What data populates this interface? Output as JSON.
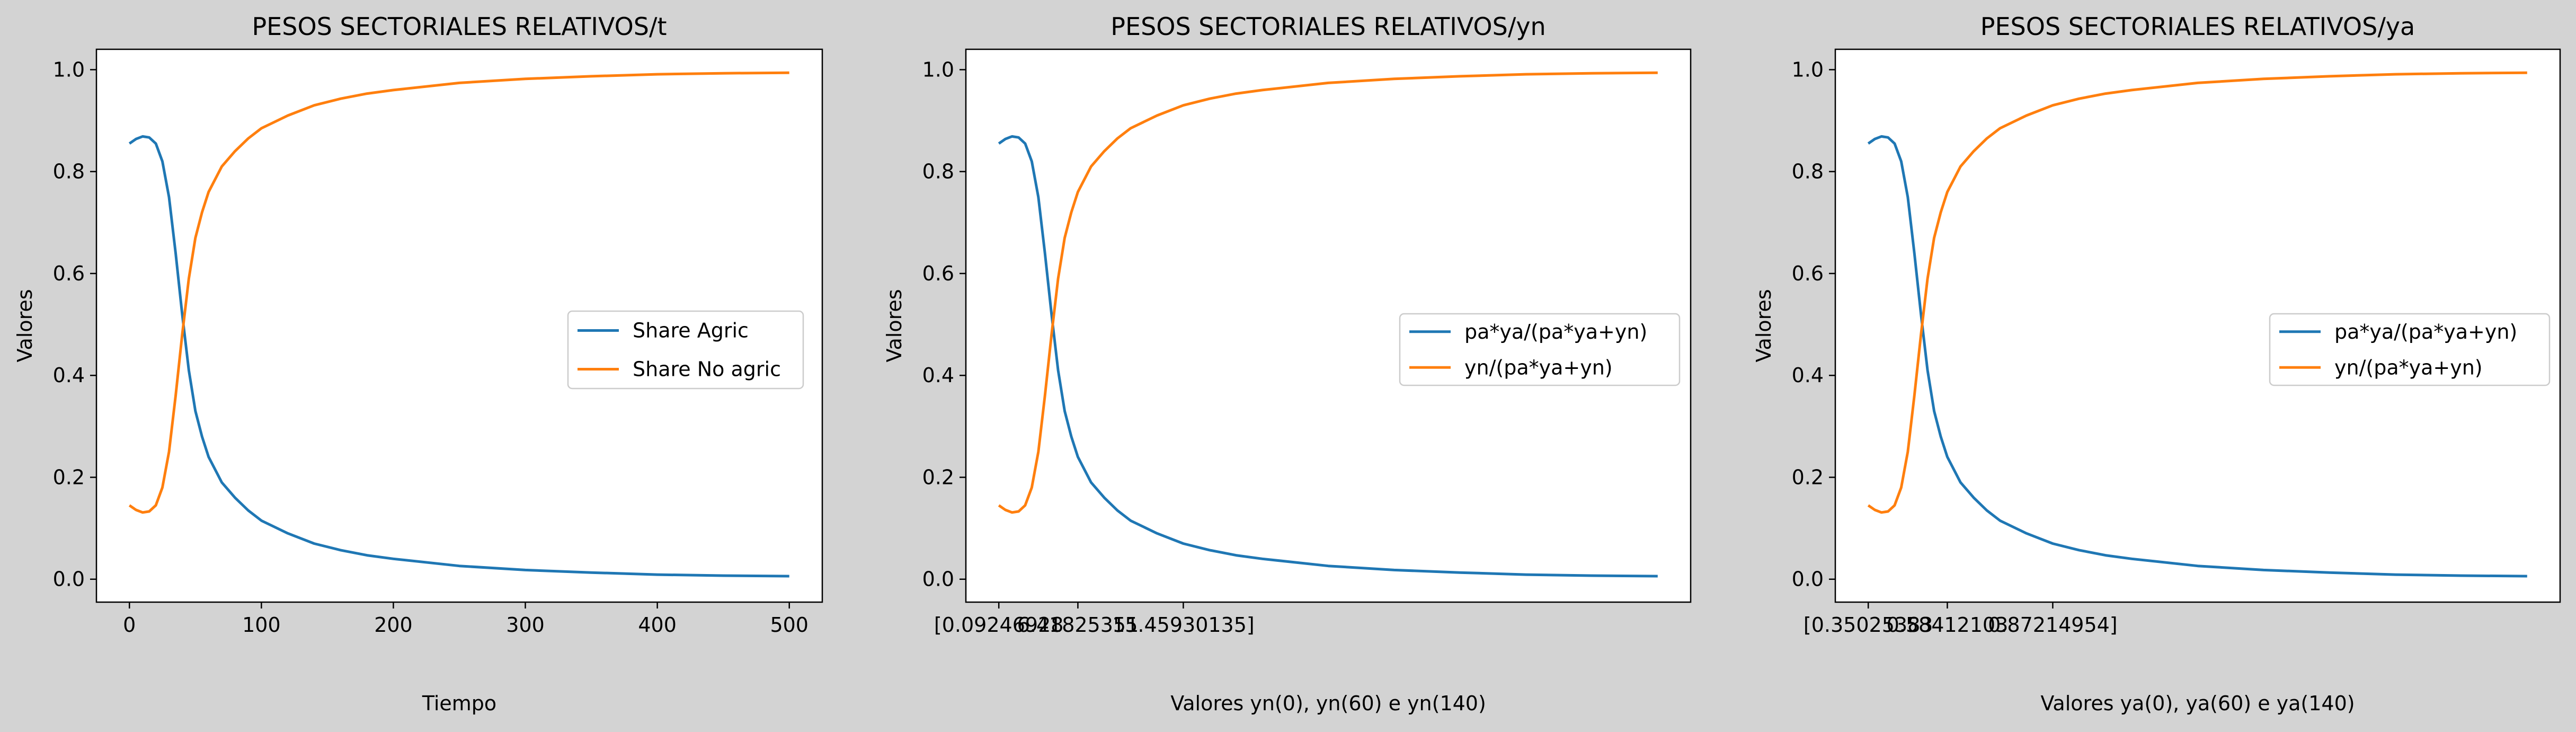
{
  "figure": {
    "background": "#d3d3d3",
    "series_colors": [
      "#1f77b4",
      "#ff7f0e"
    ]
  },
  "chart_data": [
    {
      "type": "line",
      "title": "PESOS SECTORIALES RELATIVOS/t",
      "xlabel": "Tiempo",
      "ylabel": "Valores",
      "xlim": [
        -25,
        525
      ],
      "ylim": [
        -0.045,
        1.04
      ],
      "xticks": [
        0,
        100,
        200,
        300,
        400,
        500
      ],
      "xtick_labels": [
        "0",
        "100",
        "200",
        "300",
        "400",
        "500"
      ],
      "yticks": [
        0.0,
        0.2,
        0.4,
        0.6,
        0.8,
        1.0
      ],
      "ytick_labels": [
        "0.0",
        "0.2",
        "0.4",
        "0.6",
        "0.8",
        "1.0"
      ],
      "grid": false,
      "legend_position": "center-right",
      "x": [
        0,
        5,
        10,
        15,
        20,
        25,
        30,
        35,
        40,
        45,
        50,
        55,
        60,
        70,
        80,
        90,
        100,
        120,
        140,
        160,
        180,
        200,
        250,
        300,
        350,
        400,
        450,
        500
      ],
      "series": [
        {
          "name": "Share Agric",
          "color": "#1f77b4",
          "values": [
            0.855,
            0.864,
            0.869,
            0.867,
            0.855,
            0.82,
            0.75,
            0.64,
            0.52,
            0.41,
            0.33,
            0.28,
            0.24,
            0.19,
            0.16,
            0.135,
            0.115,
            0.09,
            0.07,
            0.057,
            0.047,
            0.04,
            0.026,
            0.018,
            0.013,
            0.009,
            0.007,
            0.006
          ]
        },
        {
          "name": "Share No agric",
          "color": "#ff7f0e",
          "values": [
            0.145,
            0.136,
            0.131,
            0.133,
            0.145,
            0.18,
            0.25,
            0.36,
            0.48,
            0.59,
            0.67,
            0.72,
            0.76,
            0.81,
            0.84,
            0.865,
            0.885,
            0.91,
            0.93,
            0.943,
            0.953,
            0.96,
            0.974,
            0.982,
            0.987,
            0.991,
            0.993,
            0.994
          ]
        }
      ]
    },
    {
      "type": "line",
      "title": "PESOS SECTORIALES RELATIVOS/yn",
      "xlabel": "Valores yn(0), yn(60) e yn(140)",
      "ylabel": "Valores",
      "xlim": [
        -25,
        525
      ],
      "ylim": [
        -0.045,
        1.04
      ],
      "xticks": [
        0,
        60,
        140
      ],
      "xtick_labels": [
        "[0.09246928",
        "6.41825351",
        "15.45930135]"
      ],
      "yticks": [
        0.0,
        0.2,
        0.4,
        0.6,
        0.8,
        1.0
      ],
      "ytick_labels": [
        "0.0",
        "0.2",
        "0.4",
        "0.6",
        "0.8",
        "1.0"
      ],
      "grid": false,
      "legend_position": "center-right",
      "x": [
        0,
        5,
        10,
        15,
        20,
        25,
        30,
        35,
        40,
        45,
        50,
        55,
        60,
        70,
        80,
        90,
        100,
        120,
        140,
        160,
        180,
        200,
        250,
        300,
        350,
        400,
        450,
        500
      ],
      "series": [
        {
          "name": "pa*ya/(pa*ya+yn)",
          "color": "#1f77b4",
          "values": [
            0.855,
            0.864,
            0.869,
            0.867,
            0.855,
            0.82,
            0.75,
            0.64,
            0.52,
            0.41,
            0.33,
            0.28,
            0.24,
            0.19,
            0.16,
            0.135,
            0.115,
            0.09,
            0.07,
            0.057,
            0.047,
            0.04,
            0.026,
            0.018,
            0.013,
            0.009,
            0.007,
            0.006
          ]
        },
        {
          "name": "yn/(pa*ya+yn)",
          "color": "#ff7f0e",
          "values": [
            0.145,
            0.136,
            0.131,
            0.133,
            0.145,
            0.18,
            0.25,
            0.36,
            0.48,
            0.59,
            0.67,
            0.72,
            0.76,
            0.81,
            0.84,
            0.865,
            0.885,
            0.91,
            0.93,
            0.943,
            0.953,
            0.96,
            0.974,
            0.982,
            0.987,
            0.991,
            0.993,
            0.994
          ]
        }
      ]
    },
    {
      "type": "line",
      "title": "PESOS SECTORIALES RELATIVOS/ya",
      "xlabel": "Valores ya(0), ya(60) e ya(140)",
      "ylabel": "Valores",
      "xlim": [
        -25,
        525
      ],
      "ylim": [
        -0.045,
        1.04
      ],
      "xticks": [
        0,
        60,
        140
      ],
      "xtick_labels": [
        "[0.35025383",
        "0.58412103",
        "0.87214954]"
      ],
      "yticks": [
        0.0,
        0.2,
        0.4,
        0.6,
        0.8,
        1.0
      ],
      "ytick_labels": [
        "0.0",
        "0.2",
        "0.4",
        "0.6",
        "0.8",
        "1.0"
      ],
      "grid": false,
      "legend_position": "center-right",
      "x": [
        0,
        5,
        10,
        15,
        20,
        25,
        30,
        35,
        40,
        45,
        50,
        55,
        60,
        70,
        80,
        90,
        100,
        120,
        140,
        160,
        180,
        200,
        250,
        300,
        350,
        400,
        450,
        500
      ],
      "series": [
        {
          "name": "pa*ya/(pa*ya+yn)",
          "color": "#1f77b4",
          "values": [
            0.855,
            0.864,
            0.869,
            0.867,
            0.855,
            0.82,
            0.75,
            0.64,
            0.52,
            0.41,
            0.33,
            0.28,
            0.24,
            0.19,
            0.16,
            0.135,
            0.115,
            0.09,
            0.07,
            0.057,
            0.047,
            0.04,
            0.026,
            0.018,
            0.013,
            0.009,
            0.007,
            0.006
          ]
        },
        {
          "name": "yn/(pa*ya+yn)",
          "color": "#ff7f0e",
          "values": [
            0.145,
            0.136,
            0.131,
            0.133,
            0.145,
            0.18,
            0.25,
            0.36,
            0.48,
            0.59,
            0.67,
            0.72,
            0.76,
            0.81,
            0.84,
            0.865,
            0.885,
            0.91,
            0.93,
            0.943,
            0.953,
            0.96,
            0.974,
            0.982,
            0.987,
            0.991,
            0.993,
            0.994
          ]
        }
      ]
    }
  ]
}
